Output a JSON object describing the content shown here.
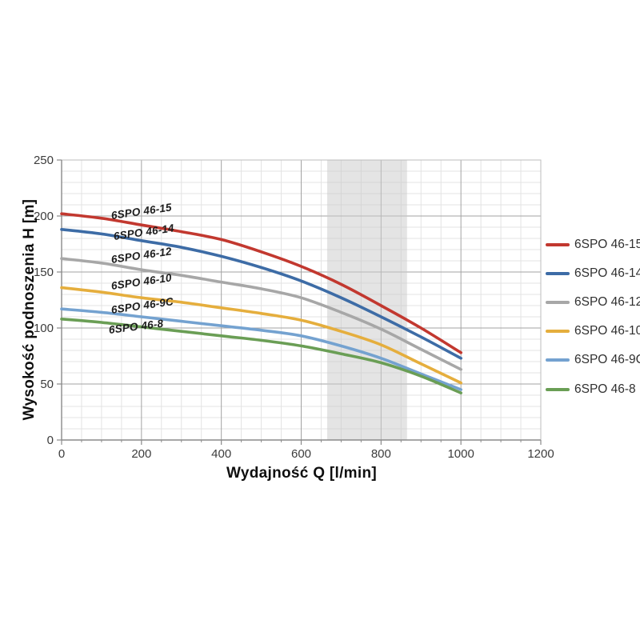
{
  "chart_data": {
    "type": "line",
    "title": "",
    "xlabel": "Wydajność Q [l/min]",
    "ylabel": "Wysokość podnoszenia H [m]",
    "xlim": [
      0,
      1200
    ],
    "ylim": [
      0,
      250
    ],
    "x_major_ticks": [
      0,
      200,
      400,
      600,
      800,
      1000,
      1200
    ],
    "y_major_ticks": [
      0,
      50,
      100,
      150,
      200,
      250
    ],
    "x_minor_step": 50,
    "y_minor_step": 10,
    "grid": "major+minor",
    "legend_position": "right",
    "operating_band": {
      "x_from": 665,
      "x_to": 865,
      "color": "#c9c9c9",
      "opacity": 0.5
    },
    "x": [
      0,
      100,
      200,
      300,
      400,
      500,
      600,
      700,
      800,
      900,
      1000
    ],
    "series": [
      {
        "name": "6SPO 46-15",
        "color": "#c2382f",
        "values": [
          202,
          198,
          192,
          186,
          179,
          168,
          155,
          139,
          120,
          100,
          78
        ]
      },
      {
        "name": "6SPO 46-14",
        "color": "#3d6ca6",
        "values": [
          188,
          184,
          178,
          172,
          164,
          154,
          142,
          127,
          110,
          92,
          73
        ]
      },
      {
        "name": "6SPO 46-12",
        "color": "#a7a7a7",
        "values": [
          162,
          158,
          152,
          147,
          141,
          135,
          127,
          114,
          99,
          81,
          63
        ]
      },
      {
        "name": "6SPO 46-10",
        "color": "#e5ae3d",
        "values": [
          136,
          132,
          127,
          123,
          118,
          113,
          107,
          97,
          85,
          68,
          51
        ]
      },
      {
        "name": "6SPO 46-9C",
        "color": "#74a2d0",
        "values": [
          117,
          114,
          110,
          106,
          102,
          98,
          93,
          84,
          73,
          59,
          45
        ]
      },
      {
        "name": "6SPO 46-8",
        "color": "#6a9e55",
        "values": [
          108,
          105,
          101,
          97,
          93,
          89,
          84,
          77,
          69,
          57,
          42
        ]
      }
    ],
    "style": {
      "grid_major_color": "#a3a3a3",
      "grid_minor_color": "#e3e3e3",
      "axis_color": "#8a8a8a",
      "border_color": "#bdbdbd",
      "tick_label_color": "#3c3c3c",
      "curve_width": 3.6
    }
  }
}
